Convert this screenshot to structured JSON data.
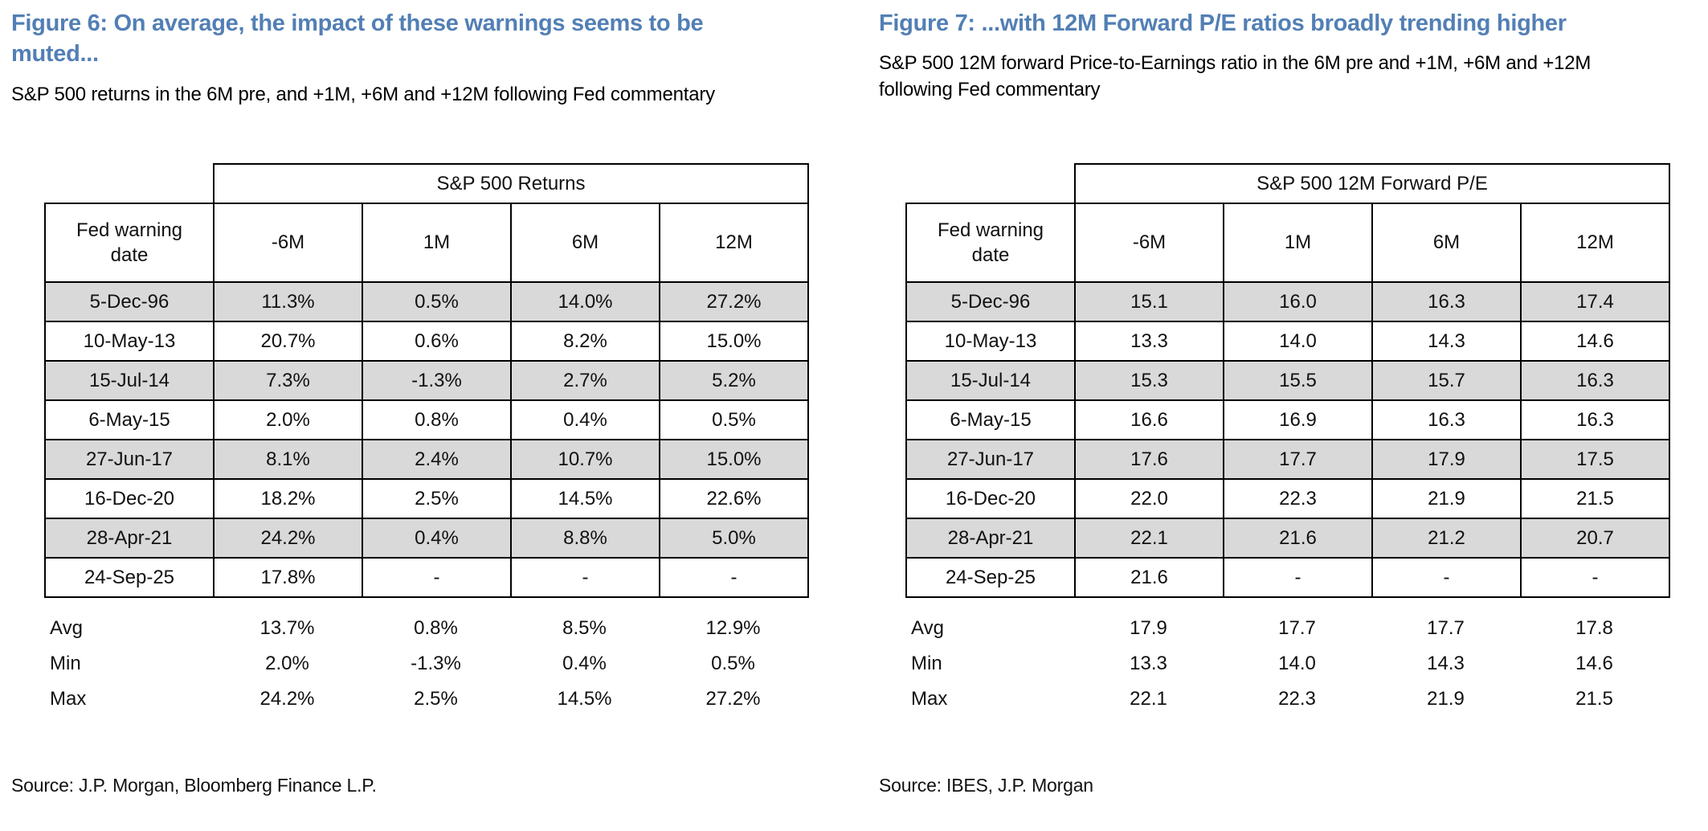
{
  "figure6": {
    "title": "Figure 6: On average, the impact of these warnings seems to be\nmuted...",
    "subtitle": "S&P 500 returns in the 6M pre, and +1M, +6M and +12M following Fed commentary",
    "source": "Source: J.P. Morgan, Bloomberg Finance L.P.",
    "table": {
      "group_header": "S&P 500 Returns",
      "row_header": "Fed warning date",
      "columns": [
        "-6M",
        "1M",
        "6M",
        "12M"
      ],
      "rows": [
        {
          "date": "5-Dec-96",
          "values": [
            "11.3%",
            "0.5%",
            "14.0%",
            "27.2%"
          ]
        },
        {
          "date": "10-May-13",
          "values": [
            "20.7%",
            "0.6%",
            "8.2%",
            "15.0%"
          ]
        },
        {
          "date": "15-Jul-14",
          "values": [
            "7.3%",
            "-1.3%",
            "2.7%",
            "5.2%"
          ]
        },
        {
          "date": "6-May-15",
          "values": [
            "2.0%",
            "0.8%",
            "0.4%",
            "0.5%"
          ]
        },
        {
          "date": "27-Jun-17",
          "values": [
            "8.1%",
            "2.4%",
            "10.7%",
            "15.0%"
          ]
        },
        {
          "date": "16-Dec-20",
          "values": [
            "18.2%",
            "2.5%",
            "14.5%",
            "22.6%"
          ]
        },
        {
          "date": "28-Apr-21",
          "values": [
            "24.2%",
            "0.4%",
            "8.8%",
            "5.0%"
          ]
        },
        {
          "date": "24-Sep-25",
          "values": [
            "17.8%",
            "-",
            "-",
            "-"
          ]
        }
      ],
      "summary": [
        {
          "label": "Avg",
          "values": [
            "13.7%",
            "0.8%",
            "8.5%",
            "12.9%"
          ]
        },
        {
          "label": "Min",
          "values": [
            "2.0%",
            "-1.3%",
            "0.4%",
            "0.5%"
          ]
        },
        {
          "label": "Max",
          "values": [
            "24.2%",
            "2.5%",
            "14.5%",
            "27.2%"
          ]
        }
      ]
    }
  },
  "figure7": {
    "title": "Figure 7: ...with 12M Forward P/E ratios broadly trending higher",
    "subtitle": "S&P 500 12M forward Price-to-Earnings ratio in the 6M pre and +1M, +6M and +12M\nfollowing Fed commentary",
    "source": "Source: IBES, J.P. Morgan",
    "table": {
      "group_header": "S&P 500 12M Forward P/E",
      "row_header": "Fed warning date",
      "columns": [
        "-6M",
        "1M",
        "6M",
        "12M"
      ],
      "rows": [
        {
          "date": "5-Dec-96",
          "values": [
            "15.1",
            "16.0",
            "16.3",
            "17.4"
          ]
        },
        {
          "date": "10-May-13",
          "values": [
            "13.3",
            "14.0",
            "14.3",
            "14.6"
          ]
        },
        {
          "date": "15-Jul-14",
          "values": [
            "15.3",
            "15.5",
            "15.7",
            "16.3"
          ]
        },
        {
          "date": "6-May-15",
          "values": [
            "16.6",
            "16.9",
            "16.3",
            "16.3"
          ]
        },
        {
          "date": "27-Jun-17",
          "values": [
            "17.6",
            "17.7",
            "17.9",
            "17.5"
          ]
        },
        {
          "date": "16-Dec-20",
          "values": [
            "22.0",
            "22.3",
            "21.9",
            "21.5"
          ]
        },
        {
          "date": "28-Apr-21",
          "values": [
            "22.1",
            "21.6",
            "21.2",
            "20.7"
          ]
        },
        {
          "date": "24-Sep-25",
          "values": [
            "21.6",
            "-",
            "-",
            "-"
          ]
        }
      ],
      "summary": [
        {
          "label": "Avg",
          "values": [
            "17.9",
            "17.7",
            "17.7",
            "17.8"
          ]
        },
        {
          "label": "Min",
          "values": [
            "13.3",
            "14.0",
            "14.3",
            "14.6"
          ]
        },
        {
          "label": "Max",
          "values": [
            "22.1",
            "22.3",
            "21.9",
            "21.5"
          ]
        }
      ]
    }
  },
  "accent_color": "#527fb5",
  "shaded_row_color": "#d9d9d9"
}
